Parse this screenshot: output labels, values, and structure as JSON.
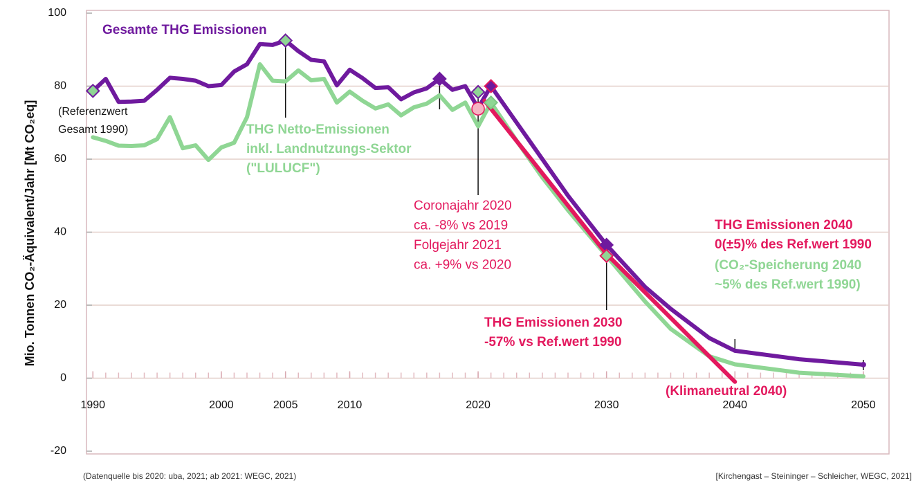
{
  "chart_data": {
    "type": "line",
    "y_label": "Mio. Tonnen CO₂-Äquivalent/Jahr [Mt CO₂eq]",
    "xlim": [
      1989.5,
      2052
    ],
    "xticks": [
      1990,
      2000,
      2005,
      2010,
      2020,
      2030,
      2040,
      2050
    ],
    "ylim": [
      -20,
      100
    ],
    "yticks": [
      -20,
      0,
      20,
      40,
      60,
      80,
      100
    ],
    "grid": true,
    "series": [
      {
        "name": "Gesamte THG Emissionen",
        "color": "#6f1a9e",
        "x": [
          1990,
          1991,
          1992,
          1993,
          1994,
          1995,
          1996,
          1997,
          1998,
          1999,
          2000,
          2001,
          2002,
          2003,
          2004,
          2005,
          2006,
          2007,
          2008,
          2009,
          2010,
          2011,
          2012,
          2013,
          2014,
          2015,
          2016,
          2017,
          2018,
          2019,
          2020,
          2021,
          2023,
          2025,
          2027,
          2030,
          2033,
          2035,
          2038,
          2040,
          2045,
          2050
        ],
        "values": [
          78.7,
          82,
          75.7,
          75.8,
          76,
          79,
          82.3,
          82,
          81.5,
          80,
          80.3,
          84,
          86,
          91.5,
          91.3,
          92.5,
          89.6,
          87.2,
          86.8,
          80.2,
          84.5,
          82.2,
          79.5,
          79.7,
          76.4,
          78.3,
          79.4,
          82,
          79,
          80,
          74,
          80,
          70,
          60,
          50,
          36.5,
          25,
          19,
          11,
          7.5,
          5.2,
          3.7
        ],
        "markers": [
          {
            "x": 1990,
            "fill": "#8fd694"
          },
          {
            "x": 2005,
            "fill": "#8fd694"
          },
          {
            "x": 2017,
            "fill": "#6f1a9e"
          },
          {
            "x": 2021,
            "fill": "#6f1a9e"
          },
          {
            "x": 2030,
            "fill": "#6f1a9e"
          }
        ]
      },
      {
        "name": "THG Netto-Emissionen inkl. Landnutzungs-Sektor (\"LULUCF\")",
        "color": "#8fd694",
        "x": [
          1990,
          1991,
          1992,
          1993,
          1994,
          1995,
          1996,
          1997,
          1998,
          1999,
          2000,
          2001,
          2002,
          2003,
          2004,
          2005,
          2006,
          2007,
          2008,
          2009,
          2010,
          2011,
          2012,
          2013,
          2014,
          2015,
          2016,
          2017,
          2018,
          2019,
          2020,
          2021,
          2023,
          2025,
          2027,
          2030,
          2033,
          2035,
          2038,
          2040,
          2045,
          2050
        ],
        "values": [
          66,
          65,
          63.7,
          63.6,
          63.8,
          65.5,
          71.5,
          63,
          63.8,
          59.8,
          63.2,
          64.5,
          71.5,
          86,
          81.5,
          81.3,
          84.3,
          81.6,
          82,
          75.5,
          78.5,
          76,
          73.9,
          75,
          72,
          74.2,
          75.2,
          77.5,
          73.5,
          75.5,
          69,
          75.5,
          65,
          55,
          46,
          33.5,
          21,
          13.5,
          6,
          3.8,
          1.5,
          0.5
        ],
        "markers": [
          {
            "x": 2021,
            "fill": "#8fd694"
          },
          {
            "x": 2030,
            "fill": "#8fd694"
          }
        ]
      },
      {
        "name": "(Klimaneutral 2040)",
        "color": "#e3195e",
        "x": [
          2020.5,
          2030,
          2040
        ],
        "values": [
          76,
          34,
          -1
        ],
        "markers": []
      }
    ],
    "points": [
      {
        "x": 2020,
        "y": 78.4,
        "color": "#8fd694"
      },
      {
        "x": 2020,
        "y": 73.8,
        "color": "#f6b4c3"
      }
    ],
    "annotations": [
      {
        "lines": [
          "(Referenzwert",
          "Gesamt 1990)"
        ],
        "color": "#111111"
      },
      {
        "lines": [
          "Coronajahr 2020",
          "ca. -8% vs 2019",
          "Folgejahr 2021",
          "ca. +9% vs 2020"
        ],
        "color": "#e3195e"
      },
      {
        "lines": [
          "THG Emissionen 2030",
          "-57% vs Ref.wert 1990"
        ],
        "color": "#e3195e"
      },
      {
        "lines": [
          "THG Emissionen 2040",
          "0(±5)% des Ref.wert 1990"
        ],
        "color": "#e3195e"
      },
      {
        "lines": [
          "(CO₂-Speicherung 2040",
          "~5% des Ref.wert 1990)"
        ],
        "color": "#8fd694"
      }
    ],
    "source_left": "(Datenquelle bis 2020: uba, 2021; ab 2021: WEGC, 2021)",
    "source_right": "[Kirchengast – Steininger – Schleicher, WEGC, 2021]"
  }
}
